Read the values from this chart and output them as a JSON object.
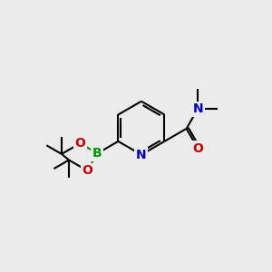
{
  "background_color": "#ebebeb",
  "atom_colors": {
    "C": "#000000",
    "N": "#0000cc",
    "O": "#cc0000",
    "B": "#009900",
    "H": "#000000"
  },
  "bond_color": "#000000",
  "bond_width": 1.5,
  "figsize": [
    3.0,
    3.0
  ],
  "dpi": 100,
  "xlim": [
    0,
    10
  ],
  "ylim": [
    0,
    10
  ]
}
